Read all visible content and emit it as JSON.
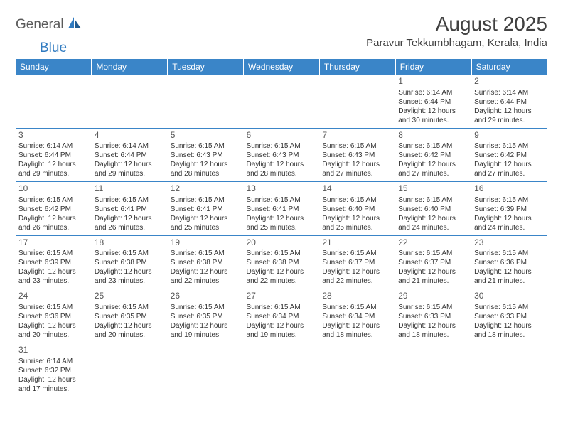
{
  "logo": {
    "part1": "General",
    "part2": "Blue"
  },
  "title": "August 2025",
  "location": "Paravur Tekkumbhagam, Kerala, India",
  "colors": {
    "header_bg": "#3a85c8",
    "header_text": "#ffffff",
    "border": "#3a85c8",
    "logo_gray": "#5a5a5a",
    "logo_blue": "#2f7ac0",
    "text": "#333333",
    "title_color": "#404040"
  },
  "day_headers": [
    "Sunday",
    "Monday",
    "Tuesday",
    "Wednesday",
    "Thursday",
    "Friday",
    "Saturday"
  ],
  "weeks": [
    [
      null,
      null,
      null,
      null,
      null,
      {
        "n": "1",
        "sunrise": "6:14 AM",
        "sunset": "6:44 PM",
        "daylight": "12 hours and 30 minutes."
      },
      {
        "n": "2",
        "sunrise": "6:14 AM",
        "sunset": "6:44 PM",
        "daylight": "12 hours and 29 minutes."
      }
    ],
    [
      {
        "n": "3",
        "sunrise": "6:14 AM",
        "sunset": "6:44 PM",
        "daylight": "12 hours and 29 minutes."
      },
      {
        "n": "4",
        "sunrise": "6:14 AM",
        "sunset": "6:44 PM",
        "daylight": "12 hours and 29 minutes."
      },
      {
        "n": "5",
        "sunrise": "6:15 AM",
        "sunset": "6:43 PM",
        "daylight": "12 hours and 28 minutes."
      },
      {
        "n": "6",
        "sunrise": "6:15 AM",
        "sunset": "6:43 PM",
        "daylight": "12 hours and 28 minutes."
      },
      {
        "n": "7",
        "sunrise": "6:15 AM",
        "sunset": "6:43 PM",
        "daylight": "12 hours and 27 minutes."
      },
      {
        "n": "8",
        "sunrise": "6:15 AM",
        "sunset": "6:42 PM",
        "daylight": "12 hours and 27 minutes."
      },
      {
        "n": "9",
        "sunrise": "6:15 AM",
        "sunset": "6:42 PM",
        "daylight": "12 hours and 27 minutes."
      }
    ],
    [
      {
        "n": "10",
        "sunrise": "6:15 AM",
        "sunset": "6:42 PM",
        "daylight": "12 hours and 26 minutes."
      },
      {
        "n": "11",
        "sunrise": "6:15 AM",
        "sunset": "6:41 PM",
        "daylight": "12 hours and 26 minutes."
      },
      {
        "n": "12",
        "sunrise": "6:15 AM",
        "sunset": "6:41 PM",
        "daylight": "12 hours and 25 minutes."
      },
      {
        "n": "13",
        "sunrise": "6:15 AM",
        "sunset": "6:41 PM",
        "daylight": "12 hours and 25 minutes."
      },
      {
        "n": "14",
        "sunrise": "6:15 AM",
        "sunset": "6:40 PM",
        "daylight": "12 hours and 25 minutes."
      },
      {
        "n": "15",
        "sunrise": "6:15 AM",
        "sunset": "6:40 PM",
        "daylight": "12 hours and 24 minutes."
      },
      {
        "n": "16",
        "sunrise": "6:15 AM",
        "sunset": "6:39 PM",
        "daylight": "12 hours and 24 minutes."
      }
    ],
    [
      {
        "n": "17",
        "sunrise": "6:15 AM",
        "sunset": "6:39 PM",
        "daylight": "12 hours and 23 minutes."
      },
      {
        "n": "18",
        "sunrise": "6:15 AM",
        "sunset": "6:38 PM",
        "daylight": "12 hours and 23 minutes."
      },
      {
        "n": "19",
        "sunrise": "6:15 AM",
        "sunset": "6:38 PM",
        "daylight": "12 hours and 22 minutes."
      },
      {
        "n": "20",
        "sunrise": "6:15 AM",
        "sunset": "6:38 PM",
        "daylight": "12 hours and 22 minutes."
      },
      {
        "n": "21",
        "sunrise": "6:15 AM",
        "sunset": "6:37 PM",
        "daylight": "12 hours and 22 minutes."
      },
      {
        "n": "22",
        "sunrise": "6:15 AM",
        "sunset": "6:37 PM",
        "daylight": "12 hours and 21 minutes."
      },
      {
        "n": "23",
        "sunrise": "6:15 AM",
        "sunset": "6:36 PM",
        "daylight": "12 hours and 21 minutes."
      }
    ],
    [
      {
        "n": "24",
        "sunrise": "6:15 AM",
        "sunset": "6:36 PM",
        "daylight": "12 hours and 20 minutes."
      },
      {
        "n": "25",
        "sunrise": "6:15 AM",
        "sunset": "6:35 PM",
        "daylight": "12 hours and 20 minutes."
      },
      {
        "n": "26",
        "sunrise": "6:15 AM",
        "sunset": "6:35 PM",
        "daylight": "12 hours and 19 minutes."
      },
      {
        "n": "27",
        "sunrise": "6:15 AM",
        "sunset": "6:34 PM",
        "daylight": "12 hours and 19 minutes."
      },
      {
        "n": "28",
        "sunrise": "6:15 AM",
        "sunset": "6:34 PM",
        "daylight": "12 hours and 18 minutes."
      },
      {
        "n": "29",
        "sunrise": "6:15 AM",
        "sunset": "6:33 PM",
        "daylight": "12 hours and 18 minutes."
      },
      {
        "n": "30",
        "sunrise": "6:15 AM",
        "sunset": "6:33 PM",
        "daylight": "12 hours and 18 minutes."
      }
    ],
    [
      {
        "n": "31",
        "sunrise": "6:14 AM",
        "sunset": "6:32 PM",
        "daylight": "12 hours and 17 minutes."
      },
      null,
      null,
      null,
      null,
      null,
      null
    ]
  ],
  "labels": {
    "sunrise": "Sunrise:",
    "sunset": "Sunset:",
    "daylight": "Daylight:"
  }
}
